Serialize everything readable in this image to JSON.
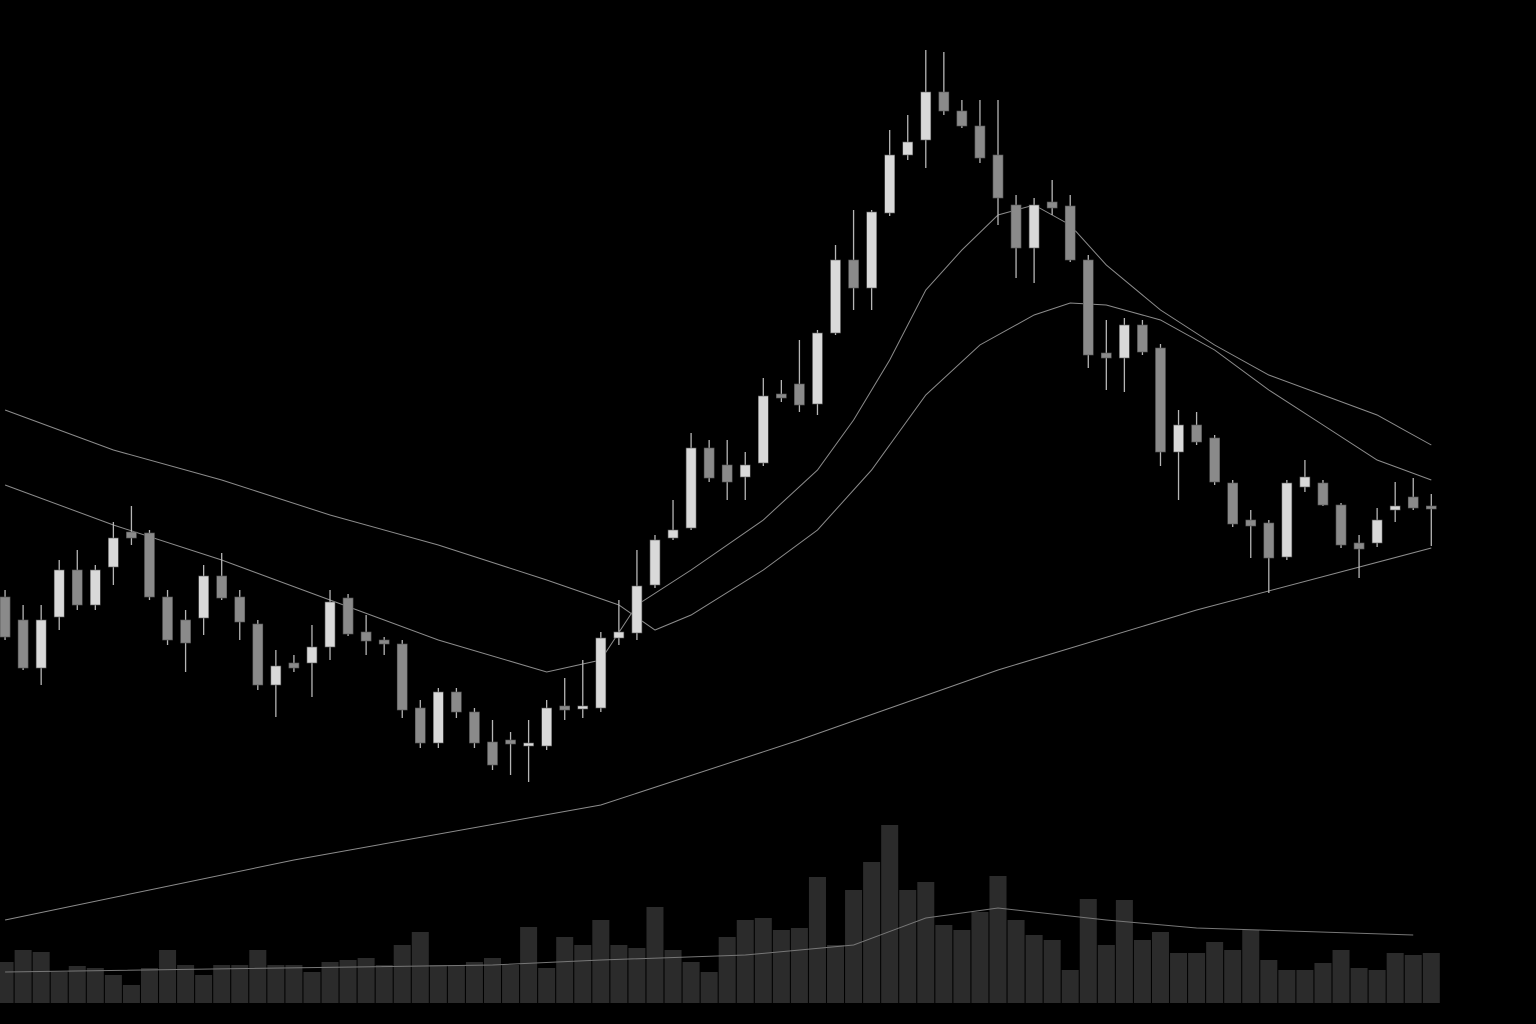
{
  "chart_data": {
    "type": "candlestick",
    "xlim": [
      -0.28,
      84.8
    ],
    "ylim": [
      0,
      100
    ],
    "up_color": "#d9d9d9",
    "down_color": "#8a8a8a",
    "wick_color": "#b5b5b5",
    "open": [
      40.3,
      38.0,
      33.2,
      38.3,
      43.0,
      39.5,
      43.3,
      46.8,
      46.7,
      40.3,
      38.0,
      38.2,
      42.4,
      40.3,
      37.6,
      31.5,
      33.7,
      33.7,
      35.3,
      40.2,
      36.8,
      36.0,
      35.6,
      29.2,
      25.7,
      30.8,
      28.8,
      25.8,
      26.0,
      25.4,
      25.4,
      29.4,
      29.1,
      29.2,
      36.2,
      36.7,
      41.5,
      46.2,
      47.2,
      55.2,
      53.5,
      52.3,
      53.7,
      60.6,
      61.6,
      59.6,
      66.7,
      74.0,
      71.2,
      78.7,
      84.5,
      86.0,
      90.8,
      88.9,
      87.4,
      84.5,
      79.5,
      75.2,
      79.8,
      79.4,
      74.0,
      64.7,
      64.2,
      67.5,
      65.2,
      54.8,
      57.5,
      56.2,
      51.7,
      48.0,
      47.7,
      44.3,
      51.3,
      51.7,
      49.5,
      45.7,
      45.7,
      49.0,
      50.3,
      49.4
    ],
    "high": [
      41.0,
      39.5,
      39.5,
      44.0,
      45.0,
      43.5,
      47.8,
      49.4,
      47.0,
      41.0,
      39.0,
      43.5,
      44.7,
      41.0,
      38.0,
      35.0,
      34.5,
      37.5,
      41.0,
      40.6,
      38.5,
      36.3,
      36.0,
      30.0,
      31.2,
      31.2,
      29.2,
      28.0,
      26.8,
      28.0,
      30.0,
      32.2,
      34.0,
      36.8,
      40.0,
      45.0,
      46.5,
      50.0,
      56.7,
      56.0,
      56.0,
      54.8,
      62.2,
      62.0,
      66.0,
      67.0,
      75.5,
      79.0,
      79.0,
      87.0,
      88.5,
      95.0,
      94.8,
      90.0,
      90.0,
      90.0,
      80.5,
      80.2,
      82.0,
      80.5,
      74.5,
      68.0,
      68.2,
      68.0,
      65.6,
      59.0,
      58.8,
      56.5,
      52.0,
      49.0,
      48.0,
      52.0,
      54.0,
      52.0,
      49.7,
      46.5,
      49.2,
      51.8,
      52.2,
      50.6
    ],
    "low": [
      36.0,
      33.0,
      31.5,
      37.0,
      39.0,
      39.0,
      41.5,
      45.5,
      40.0,
      35.5,
      32.8,
      36.5,
      40.0,
      36.0,
      31.0,
      28.3,
      32.8,
      30.3,
      34.0,
      36.4,
      34.5,
      34.5,
      28.2,
      25.2,
      25.2,
      28.2,
      25.2,
      23.0,
      22.5,
      21.8,
      25.0,
      28.0,
      28.2,
      28.8,
      35.5,
      36.0,
      41.2,
      46.0,
      47.0,
      51.8,
      50.0,
      50.0,
      53.4,
      59.8,
      58.8,
      58.5,
      66.5,
      69.0,
      69.0,
      78.4,
      84.0,
      83.2,
      88.5,
      87.2,
      83.7,
      77.5,
      72.2,
      71.7,
      78.5,
      73.8,
      63.2,
      61.0,
      60.8,
      64.5,
      53.4,
      50.0,
      55.5,
      51.5,
      47.3,
      44.2,
      40.7,
      44.0,
      50.8,
      49.4,
      45.2,
      42.2,
      45.3,
      47.8,
      49.0,
      45.4
    ],
    "close": [
      36.3,
      33.2,
      38.0,
      43.0,
      39.5,
      43.0,
      46.2,
      46.2,
      40.3,
      36.0,
      35.7,
      42.4,
      40.2,
      37.8,
      31.5,
      33.4,
      33.2,
      35.3,
      39.8,
      36.6,
      35.9,
      35.6,
      29.0,
      25.7,
      30.8,
      28.8,
      25.7,
      23.5,
      25.6,
      25.7,
      29.2,
      29.0,
      29.4,
      36.2,
      36.8,
      41.4,
      46.0,
      47.0,
      55.2,
      52.2,
      51.8,
      53.5,
      60.4,
      60.2,
      59.5,
      66.7,
      74.0,
      71.2,
      78.8,
      84.5,
      85.8,
      90.8,
      88.9,
      87.4,
      84.2,
      80.2,
      75.2,
      79.5,
      79.2,
      74.0,
      64.5,
      64.2,
      67.5,
      64.8,
      54.8,
      57.5,
      55.8,
      51.8,
      47.6,
      47.4,
      44.2,
      51.7,
      52.3,
      49.5,
      45.5,
      45.1,
      48.0,
      49.4,
      49.2,
      49.1
    ],
    "lines": [
      {
        "color": "#8c8c8c",
        "x": [
          0,
          6,
          12,
          18,
          24,
          30,
          33,
          35,
          38,
          42,
          45,
          47,
          49,
          51,
          53,
          55,
          57,
          59,
          61,
          64,
          67,
          70,
          73,
          76,
          79
        ],
        "values": [
          51.5,
          47.5,
          44,
          40,
          36,
          32.8,
          34,
          39.5,
          43,
          48,
          53,
          58,
          64,
          71,
          75,
          78.5,
          79.5,
          77.5,
          73.5,
          69,
          65.5,
          62.5,
          60.5,
          58.5,
          55.5
        ]
      },
      {
        "color": "#8c8c8c",
        "x": [
          0,
          6,
          12,
          18,
          24,
          30,
          34,
          36,
          38,
          42,
          45,
          48,
          51,
          54,
          57,
          59,
          61,
          64,
          67,
          70,
          73,
          76,
          79
        ],
        "values": [
          59,
          55,
          52,
          48.5,
          45.5,
          42,
          39.5,
          37,
          38.5,
          43,
          47,
          53,
          60.5,
          65.5,
          68.5,
          69.7,
          69.5,
          68,
          65,
          61,
          57.5,
          54,
          52
        ]
      },
      {
        "color": "#8c8c8c",
        "x": [
          0,
          16,
          33,
          44,
          55,
          66,
          79
        ],
        "values": [
          8,
          14,
          19.5,
          26,
          33,
          39,
          45.2
        ]
      }
    ],
    "volume": {
      "color": "#2b2b2b",
      "ylim": [
        0,
        100
      ],
      "values": [
        20.5,
        26.5,
        25.5,
        15.5,
        18.5,
        17.5,
        14,
        9,
        17.5,
        26.5,
        19,
        14,
        19,
        19,
        26.5,
        19,
        19,
        15.5,
        20.5,
        21.5,
        22.5,
        19,
        29,
        35.5,
        19,
        19,
        20.5,
        22.5,
        19,
        38,
        17.5,
        33,
        29,
        41.5,
        29,
        27.5,
        48,
        26.5,
        20.5,
        15.5,
        33,
        41.5,
        42.5,
        36.5,
        37.5,
        63,
        29,
        56.5,
        70.5,
        89,
        56.5,
        60.5,
        39,
        36.5,
        45.5,
        63.5,
        41.5,
        34,
        31.5,
        16.5,
        52,
        29,
        51.5,
        31.5,
        35.5,
        25,
        25,
        30.5,
        26.5,
        36.5,
        21.5,
        16.5,
        16.5,
        20,
        26.5,
        17.5,
        16.5,
        25,
        24,
        25
      ],
      "ma": {
        "color": "#777777",
        "x": [
          0,
          27,
          33,
          41,
          47,
          51,
          55,
          61,
          66,
          78
        ],
        "values": [
          15.5,
          19,
          21.5,
          24,
          29,
          42.5,
          47.5,
          41.5,
          37.5,
          34
        ]
      }
    }
  }
}
